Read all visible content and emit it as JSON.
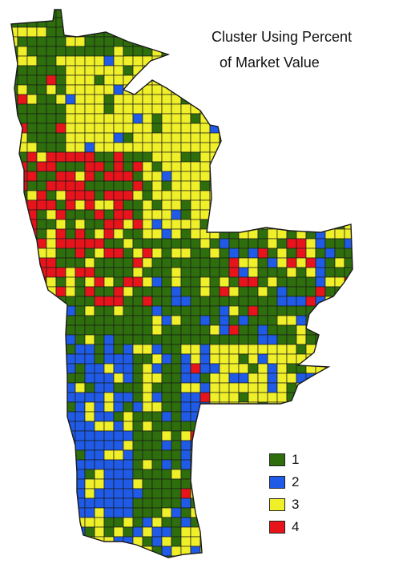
{
  "map": {
    "title_line_1": "Cluster Using Percent",
    "title_line_2": "of Market Value",
    "border_color": "#1a1a1a"
  },
  "legend": [
    {
      "label": "1",
      "color": "#2e6e0d"
    },
    {
      "label": "2",
      "color": "#1f5be6"
    },
    {
      "label": "3",
      "color": "#f0f02a"
    },
    {
      "label": "4",
      "color": "#e8141c"
    }
  ]
}
